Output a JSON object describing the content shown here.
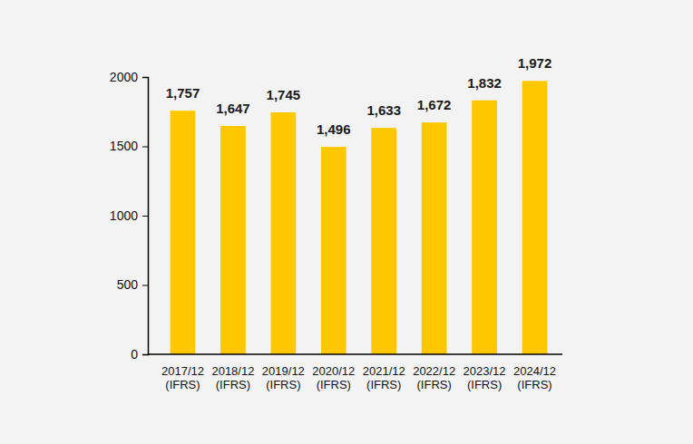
{
  "chart_data": {
    "type": "bar",
    "categories": [
      "2017/12\n(IFRS)",
      "2018/12\n(IFRS)",
      "2019/12\n(IFRS)",
      "2020/12\n(IFRS)",
      "2021/12\n(IFRS)",
      "2022/12\n(IFRS)",
      "2023/12\n(IFRS)",
      "2024/12\n(IFRS)"
    ],
    "values": [
      1757,
      1647,
      1745,
      1496,
      1633,
      1672,
      1832,
      1972
    ],
    "value_labels": [
      "1,757",
      "1,647",
      "1,745",
      "1,496",
      "1,633",
      "1,672",
      "1,832",
      "1,972"
    ],
    "data_labels": true,
    "color": "#ffc700",
    "ylim": [
      0,
      2000
    ],
    "yticks": [
      0,
      500,
      1000,
      1500,
      2000
    ],
    "grid": false
  }
}
